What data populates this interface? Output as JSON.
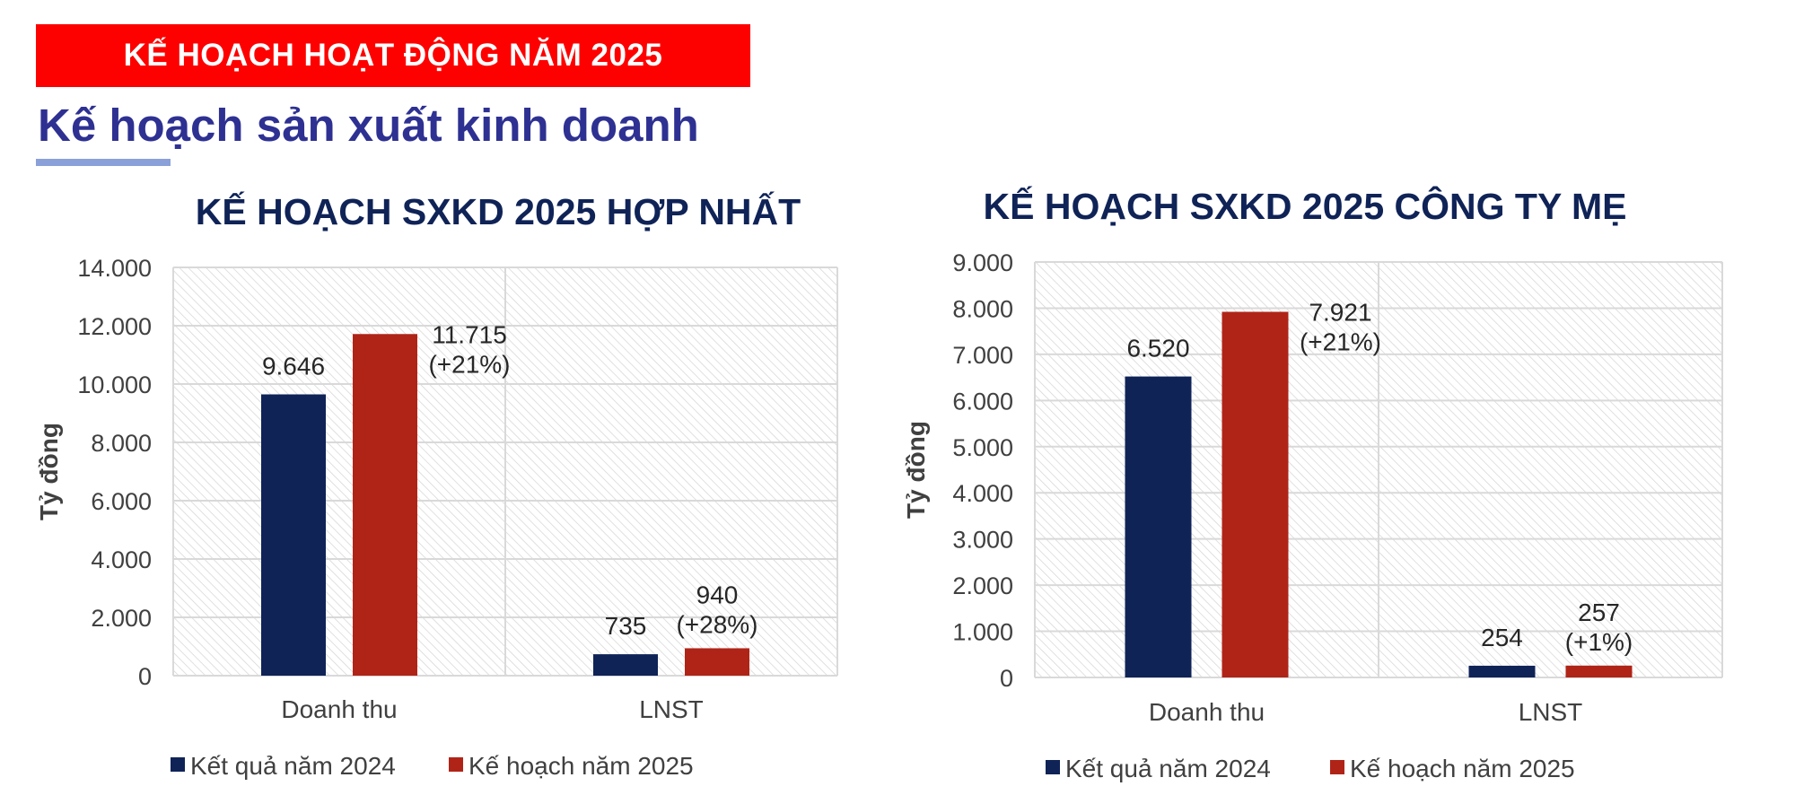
{
  "header": {
    "banner": "KẾ HOẠCH HOẠT ĐỘNG NĂM 2025",
    "subtitle": "Kế hoạch sản xuất kinh doanh"
  },
  "colors": {
    "banner_bg": "#fd0000",
    "series_2024": "#0f2357",
    "series_2025": "#b02418",
    "subtitle": "#2e3192"
  },
  "chart_data": [
    {
      "type": "bar",
      "title": "KẾ HOẠCH SXKD 2025 HỢP NHẤT",
      "ylabel": "Tỷ đồng",
      "xlabel": "",
      "categories": [
        "Doanh thu",
        "LNST"
      ],
      "ylim": [
        0,
        14000
      ],
      "yticks": [
        0,
        2000,
        4000,
        6000,
        8000,
        10000,
        12000,
        14000
      ],
      "ytick_labels": [
        "0",
        "2.000",
        "4.000",
        "6.000",
        "8.000",
        "10.000",
        "12.000",
        "14.000"
      ],
      "series": [
        {
          "name": "Kết quả năm 2024",
          "values": [
            9646,
            735
          ],
          "labels": [
            "9.646",
            "735"
          ],
          "color": "#0f2357"
        },
        {
          "name": "Kế hoạch năm 2025",
          "values": [
            11715,
            940
          ],
          "labels": [
            "11.715",
            "940"
          ],
          "sublabels": [
            "(+21%)",
            "(+28%)"
          ],
          "color": "#b02418"
        }
      ],
      "grid": true,
      "legend": "bottom"
    },
    {
      "type": "bar",
      "title": "KẾ HOẠCH SXKD 2025 CÔNG TY MẸ",
      "ylabel": "Tỷ đồng",
      "xlabel": "",
      "categories": [
        "Doanh thu",
        "LNST"
      ],
      "ylim": [
        0,
        9000
      ],
      "yticks": [
        0,
        1000,
        2000,
        3000,
        4000,
        5000,
        6000,
        7000,
        8000,
        9000
      ],
      "ytick_labels": [
        "0",
        "1.000",
        "2.000",
        "3.000",
        "4.000",
        "5.000",
        "6.000",
        "7.000",
        "8.000",
        "9.000"
      ],
      "series": [
        {
          "name": "Kết quả năm 2024",
          "values": [
            6520,
            254
          ],
          "labels": [
            "6.520",
            "254"
          ],
          "color": "#0f2357"
        },
        {
          "name": "Kế hoạch năm 2025",
          "values": [
            7921,
            257
          ],
          "labels": [
            "7.921",
            "257"
          ],
          "sublabels": [
            "(+21%)",
            "(+1%)"
          ],
          "color": "#b02418"
        }
      ],
      "grid": true,
      "legend": "bottom"
    }
  ]
}
